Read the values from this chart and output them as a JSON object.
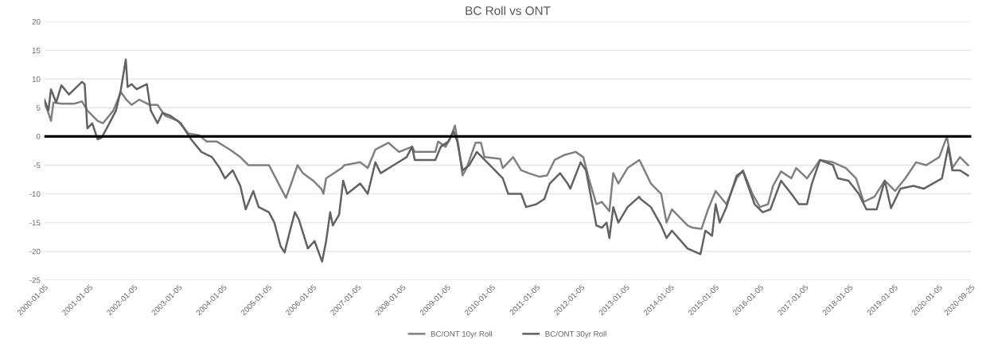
{
  "chart_data": {
    "type": "line",
    "title": "BC Roll vs ONT",
    "xlim": [
      "2000-01-05",
      "2020-09-25"
    ],
    "ylim": [
      -25,
      20
    ],
    "yticks": [
      -25,
      -20,
      -15,
      -10,
      -5,
      0,
      5,
      10,
      15,
      20
    ],
    "xticks": [
      "2000-01-05",
      "2001-01-05",
      "2002-01-05",
      "2003-01-05",
      "2004-01-05",
      "2005-01-05",
      "2006-01-05",
      "2007-01-05",
      "2008-01-05",
      "2009-01-05",
      "2010-01-05",
      "2011-01-05",
      "2012-01-05",
      "2013-01-05",
      "2014-01-05",
      "2015-01-05",
      "2016-01-05",
      "2017-01-05",
      "2018-01-05",
      "2019-01-05",
      "2020-01-05",
      "2020-09-25"
    ],
    "grid": "y",
    "legend": "bottom",
    "marker": "none",
    "line_style": "solid",
    "ref_lines": [
      {
        "axis": "y",
        "value": 0,
        "color": "#000000"
      }
    ],
    "series": [
      {
        "name": "BC/ONT 10yr Roll",
        "color": "#808080",
        "x": [
          "2000-01-05",
          "2000-02-07",
          "2000-02-28",
          "2000-03-19",
          "2000-05-23",
          "2000-09-06",
          "2000-11-07",
          "2000-12-21",
          "2001-03-15",
          "2001-04-28",
          "2001-07-21",
          "2001-09-21",
          "2001-11-04",
          "2001-12-17",
          "2002-02-17",
          "2002-05-12",
          "2002-07-17",
          "2002-09-17",
          "2003-01-01",
          "2003-03-26",
          "2003-06-22",
          "2003-08-23",
          "2003-11-15",
          "2004-02-28",
          "2004-05-23",
          "2004-07-28",
          "2005-01-12",
          "2005-02-25",
          "2005-05-31",
          "2005-07-13",
          "2005-09-03",
          "2005-10-16",
          "2006-01-08",
          "2006-03-15",
          "2006-04-02",
          "2006-04-24",
          "2006-08-30",
          "2006-09-21",
          "2007-01-27",
          "2007-03-30",
          "2007-05-31",
          "2007-09-14",
          "2007-12-10",
          "2008-03-26",
          "2008-04-17",
          "2008-10-02",
          "2008-10-24",
          "2008-12-25",
          "2009-02-07",
          "2009-03-11",
          "2009-04-10",
          "2009-05-12",
          "2009-06-14",
          "2009-08-26",
          "2009-10-09",
          "2009-11-07",
          "2010-03-15",
          "2010-04-06",
          "2010-06-29",
          "2010-09-03",
          "2010-11-04",
          "2011-01-27",
          "2011-04-02",
          "2011-06-03",
          "2011-08-26",
          "2011-11-22",
          "2012-01-23",
          "2012-03-08",
          "2012-05-09",
          "2012-06-22",
          "2012-08-23",
          "2012-09-24",
          "2012-11-04",
          "2013-01-19",
          "2013-04-24",
          "2013-05-05",
          "2013-07-28",
          "2013-10-20",
          "2013-12-03",
          "2014-01-16",
          "2014-05-23",
          "2014-07-03",
          "2014-09-14",
          "2014-11-07",
          "2015-01-08",
          "2015-04-06",
          "2015-06-29",
          "2015-08-19",
          "2015-11-04",
          "2016-01-05",
          "2016-03-11",
          "2016-04-21",
          "2016-06-25",
          "2016-09-17",
          "2016-10-27",
          "2017-01-23",
          "2017-05-09",
          "2017-08-23",
          "2017-12-06",
          "2018-02-28",
          "2018-05-01",
          "2018-07-28",
          "2018-10-20",
          "2019-01-12",
          "2019-04-06",
          "2019-07-03",
          "2019-09-24",
          "2020-01-08",
          "2020-03-11",
          "2020-04-24",
          "2020-06-25",
          "2020-08-30"
        ],
        "values": [
          5.9,
          4.1,
          2.7,
          5.9,
          5.7,
          5.7,
          6.1,
          4.5,
          2.7,
          2.3,
          4.5,
          7.7,
          6.4,
          5.5,
          6.4,
          5.5,
          5.5,
          3.6,
          2.7,
          0.5,
          0.2,
          -0.9,
          -0.9,
          -2.3,
          -3.6,
          -5,
          -5,
          -6.8,
          -10.7,
          -8.2,
          -5,
          -6.4,
          -7.7,
          -9.1,
          -10,
          -7.3,
          -5.5,
          -5,
          -4.5,
          -5.5,
          -2.3,
          -1.1,
          -2.7,
          -1.8,
          -2.7,
          -2.7,
          -0.9,
          -1.8,
          0,
          1.9,
          -1.8,
          -6.8,
          -5.5,
          -1.1,
          -1.1,
          -3.6,
          -3.9,
          -5.5,
          -3.6,
          -5.9,
          -6.4,
          -7,
          -6.8,
          -4.1,
          -3.2,
          -2.7,
          -3.6,
          -7.3,
          -11.8,
          -11.4,
          -13,
          -6.4,
          -8.2,
          -5.5,
          -4.1,
          -4.5,
          -8.2,
          -10,
          -15,
          -12.7,
          -15.5,
          -15.9,
          -16.1,
          -12.7,
          -9.5,
          -11.8,
          -7.3,
          -5.9,
          -10,
          -12.3,
          -11.8,
          -8.6,
          -6.1,
          -7.3,
          -5.5,
          -7.3,
          -4.1,
          -4.5,
          -5.5,
          -7.3,
          -11.4,
          -10.5,
          -7.7,
          -9.5,
          -7.3,
          -4.5,
          -5,
          -3.6,
          0,
          -5.5,
          -3.6,
          -5
        ]
      },
      {
        "name": "BC/ONT 30yr Roll",
        "color": "#626262",
        "x": [
          "2000-01-05",
          "2000-02-07",
          "2000-02-28",
          "2000-04-10",
          "2000-05-23",
          "2000-07-24",
          "2000-11-07",
          "2000-11-29",
          "2000-12-21",
          "2001-01-30",
          "2001-03-15",
          "2001-04-17",
          "2001-06-07",
          "2001-08-12",
          "2001-09-21",
          "2001-10-31",
          "2001-11-15",
          "2001-12-17",
          "2002-01-27",
          "2002-04-21",
          "2002-05-23",
          "2002-07-17",
          "2002-08-26",
          "2002-10-31",
          "2003-01-23",
          "2003-04-17",
          "2003-07-10",
          "2003-10-05",
          "2003-12-06",
          "2004-01-19",
          "2004-03-22",
          "2004-05-23",
          "2004-07-06",
          "2004-09-06",
          "2004-10-20",
          "2005-01-12",
          "2005-02-25",
          "2005-04-17",
          "2005-05-20",
          "2005-07-03",
          "2005-08-12",
          "2005-09-14",
          "2005-11-26",
          "2006-01-19",
          "2006-03-22",
          "2006-04-24",
          "2006-05-27",
          "2006-06-18",
          "2006-08-08",
          "2006-09-10",
          "2006-10-13",
          "2007-01-27",
          "2007-03-30",
          "2007-05-31",
          "2007-07-13",
          "2007-10-27",
          "2008-02-10",
          "2008-03-26",
          "2008-04-17",
          "2008-10-02",
          "2008-11-15",
          "2009-01-16",
          "2009-02-28",
          "2009-03-30",
          "2009-05-12",
          "2009-07-06",
          "2009-09-06",
          "2009-12-21",
          "2010-04-06",
          "2010-05-20",
          "2010-09-03",
          "2010-10-13",
          "2011-01-05",
          "2011-03-11",
          "2011-04-24",
          "2011-07-17",
          "2011-09-17",
          "2011-10-09",
          "2012-01-01",
          "2012-02-14",
          "2012-05-09",
          "2012-06-22",
          "2012-08-01",
          "2012-08-23",
          "2012-09-24",
          "2012-11-04",
          "2013-01-19",
          "2013-04-24",
          "2013-05-05",
          "2013-07-28",
          "2013-10-20",
          "2013-12-03",
          "2014-01-16",
          "2014-05-23",
          "2014-09-06",
          "2014-10-16",
          "2014-12-10",
          "2015-01-08",
          "2015-02-10",
          "2015-04-06",
          "2015-06-29",
          "2015-08-19",
          "2015-11-22",
          "2016-01-27",
          "2016-03-30",
          "2016-06-25",
          "2016-09-17",
          "2016-11-18",
          "2017-01-23",
          "2017-03-04",
          "2017-05-09",
          "2017-08-23",
          "2017-10-02",
          "2017-12-28",
          "2018-03-22",
          "2018-05-23",
          "2018-08-15",
          "2018-10-20",
          "2018-12-10",
          "2019-02-25",
          "2019-06-11",
          "2019-09-03",
          "2020-01-30",
          "2020-03-22",
          "2020-04-24",
          "2020-06-25",
          "2020-08-30"
        ],
        "values": [
          6.4,
          4.5,
          8.2,
          5.9,
          8.9,
          7.3,
          9.5,
          9.1,
          1.4,
          2.3,
          -0.5,
          -0.2,
          1.8,
          4.5,
          8.2,
          13.4,
          8.6,
          9.1,
          8.2,
          9.1,
          4.5,
          2.3,
          4.1,
          3.6,
          2.3,
          -0.5,
          -2.7,
          -3.6,
          -5.5,
          -7.3,
          -5.9,
          -8.6,
          -12.7,
          -9.5,
          -12.3,
          -13.2,
          -15,
          -19.1,
          -20.2,
          -16.4,
          -13.2,
          -14.5,
          -19.5,
          -18.2,
          -21.8,
          -18.2,
          -13.2,
          -15.5,
          -13.6,
          -7.7,
          -10,
          -8.2,
          -10,
          -4.5,
          -6.4,
          -5,
          -3.6,
          -1.8,
          -4.1,
          -4.1,
          -1.8,
          -0.9,
          0.9,
          -0.9,
          -5.9,
          -5,
          -2.7,
          -5,
          -7.3,
          -10,
          -10,
          -12.3,
          -11.8,
          -10.9,
          -8.2,
          -6.4,
          -8.2,
          -9.1,
          -4.5,
          -5.9,
          -15.5,
          -15.9,
          -15,
          -17.7,
          -12.3,
          -15,
          -12.3,
          -10.5,
          -10.9,
          -12.3,
          -15.5,
          -17.7,
          -16.4,
          -19.5,
          -20.5,
          -16.4,
          -17.3,
          -11.8,
          -15,
          -12.3,
          -6.8,
          -6.1,
          -11.8,
          -13.2,
          -12.7,
          -7.7,
          -10,
          -11.8,
          -11.8,
          -8.2,
          -4.1,
          -5,
          -7.3,
          -7.7,
          -10,
          -12.7,
          -12.7,
          -7.7,
          -12.5,
          -9.1,
          -8.6,
          -9.1,
          -7.3,
          -1.8,
          -5.9,
          -5.9,
          -6.8
        ]
      }
    ]
  }
}
